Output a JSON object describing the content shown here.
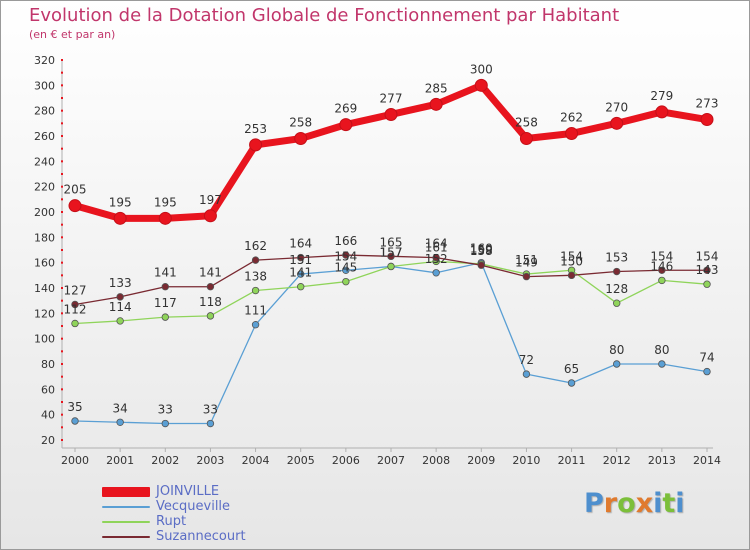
{
  "title": "Evolution de la Dotation Globale de Fonctionnement par Habitant",
  "subtitle": "(en € et par an)",
  "logo": {
    "text": "Proxiti",
    "letters": [
      {
        "ch": "P",
        "color": "#4e8fce"
      },
      {
        "ch": "r",
        "color": "#e07a2e"
      },
      {
        "ch": "o",
        "color": "#7cbf3a"
      },
      {
        "ch": "x",
        "color": "#e07a2e"
      },
      {
        "ch": "i",
        "color": "#4e8fce"
      },
      {
        "ch": "t",
        "color": "#7cbf3a"
      },
      {
        "ch": "i",
        "color": "#4e8fce"
      }
    ]
  },
  "chart_data": {
    "type": "line",
    "title": "Evolution de la Dotation Globale de Fonctionnement par Habitant",
    "subtitle": "(en € et par an)",
    "xlabel": "",
    "ylabel": "",
    "ylim": [
      20,
      320
    ],
    "yticks": [
      20,
      40,
      60,
      80,
      100,
      120,
      140,
      160,
      180,
      200,
      220,
      240,
      260,
      280,
      300,
      320
    ],
    "grid": false,
    "legend_position": "bottom-left",
    "x": [
      "2000",
      "2001",
      "2002",
      "2003",
      "2004",
      "2005",
      "2006",
      "2007",
      "2008",
      "2009",
      "2010",
      "2011",
      "2012",
      "2013",
      "2014"
    ],
    "series": [
      {
        "name": "JOINVILLE",
        "color": "#e8141e",
        "values": [
          205,
          195,
          195,
          197,
          253,
          258,
          269,
          277,
          285,
          300,
          258,
          262,
          270,
          279,
          273
        ],
        "labels": [
          "205",
          "195",
          "195",
          "197",
          "253",
          "258",
          "269",
          "277",
          "285",
          "300",
          "258",
          "262",
          "270",
          "279",
          "273"
        ]
      },
      {
        "name": "Vecqueville",
        "color": "#5a9fd4",
        "values": [
          35,
          34,
          33,
          33,
          111,
          151,
          154,
          157,
          152,
          160,
          72,
          65,
          80,
          80,
          74
        ],
        "labels": [
          "35",
          "34",
          "33",
          "33",
          "111",
          "151",
          "154",
          "157",
          "152",
          "160",
          "72",
          "65",
          "80",
          "80",
          "74"
        ]
      },
      {
        "name": "Rupt",
        "color": "#8fd45a",
        "values": [
          112,
          114,
          117,
          118,
          138,
          141,
          145,
          157,
          161,
          159,
          151,
          154,
          128,
          146,
          143
        ],
        "labels": [
          "112",
          "114",
          "117",
          "118",
          "138",
          "141",
          "145",
          "157",
          "161",
          "159",
          "151",
          "154",
          "128",
          "146",
          "143"
        ]
      },
      {
        "name": "Suzannecourt",
        "color": "#7a2a32",
        "values": [
          127,
          133,
          141,
          141,
          162,
          164,
          166,
          165,
          164,
          158,
          149,
          150,
          153,
          154,
          154
        ],
        "labels": [
          "127",
          "133",
          "141",
          "141",
          "162",
          "164",
          "166",
          "165",
          "164",
          "158",
          "149",
          "150",
          "153",
          "154",
          "154"
        ]
      }
    ]
  }
}
